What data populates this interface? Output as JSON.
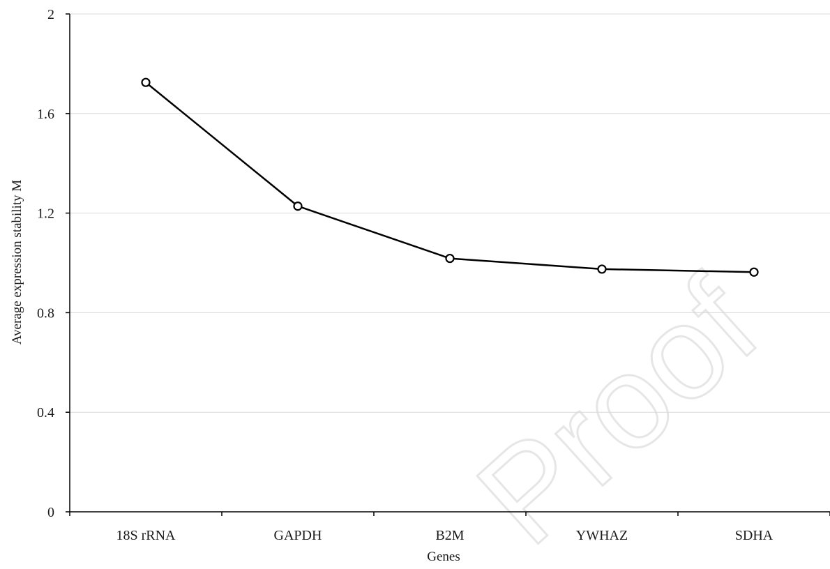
{
  "chart_data": {
    "type": "line",
    "categories": [
      "18S rRNA",
      "GAPDH",
      "B2M",
      "YWHAZ",
      "SDHA"
    ],
    "series": [
      {
        "values": [
          1.725,
          1.228,
          1.018,
          0.975,
          0.963
        ],
        "color": "#000000",
        "marker": "open-circle"
      }
    ],
    "title": "",
    "xlabel": "Genes",
    "ylabel": "Average expression stability M",
    "ylim": [
      0,
      2
    ],
    "yticks": [
      0,
      0.4,
      0.8,
      1.2,
      1.6,
      2
    ],
    "ytick_labels": [
      "0",
      "0.4",
      "0.8",
      "1.2",
      "1.6",
      "2"
    ],
    "grid": "horizontal",
    "legend": "none",
    "colors": {
      "line": "#000000",
      "grid": "#d9d9d9",
      "axis": "#000000",
      "watermark": "#e6e6e6"
    }
  },
  "watermark": {
    "text": "Proof"
  }
}
